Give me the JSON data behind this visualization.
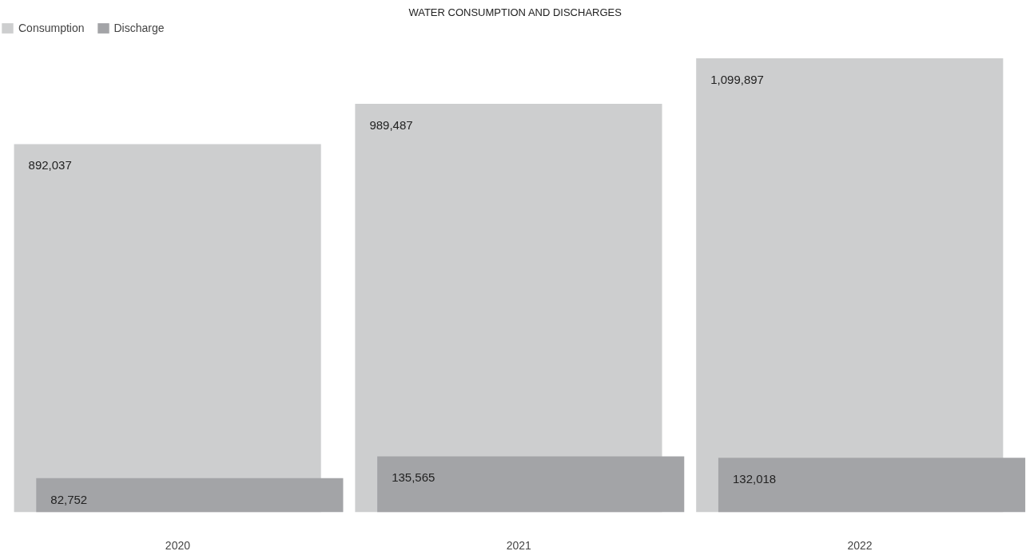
{
  "chart_data": {
    "type": "bar",
    "title": "WATER CONSUMPTION AND DISCHARGES",
    "categories": [
      "2020",
      "2021",
      "2022"
    ],
    "series": [
      {
        "name": "Consumption",
        "color": "#cdcecf",
        "values": [
          892037,
          989487,
          1099897
        ],
        "value_labels": [
          "892,037",
          "989,487",
          "1,099,897"
        ]
      },
      {
        "name": "Discharge",
        "color": "#a3a4a7",
        "values": [
          82752,
          135565,
          132018
        ],
        "value_labels": [
          "82,752",
          "135,565",
          "132,018"
        ]
      }
    ],
    "legend": "top left",
    "grid": false
  }
}
